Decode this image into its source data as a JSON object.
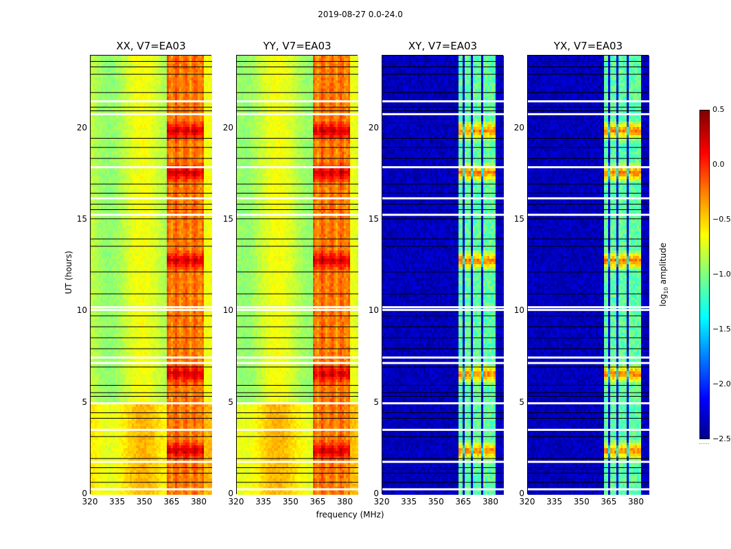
{
  "figure_title": "2019-08-27 0.0-24.0",
  "chart_data": {
    "type": "heatmap",
    "panels": [
      {
        "title": "XX, V7=EA03",
        "mode": "auto"
      },
      {
        "title": "YY, V7=EA03",
        "mode": "auto"
      },
      {
        "title": "XY, V7=EA03",
        "mode": "cross"
      },
      {
        "title": "YX, V7=EA03",
        "mode": "cross"
      }
    ],
    "xlabel": "frequency (MHz)",
    "ylabel": "UT (hours)",
    "xlim": [
      320,
      387
    ],
    "ylim": [
      0,
      24
    ],
    "x_ticks": [
      320,
      335,
      350,
      365,
      380
    ],
    "x_tick_labels": [
      "320",
      "335",
      "350",
      "365",
      "380"
    ],
    "y_ticks": [
      0,
      5,
      10,
      15,
      20
    ],
    "y_tick_labels": [
      "0",
      "5",
      "10",
      "15",
      "20"
    ],
    "colorbar": {
      "label": "log10 amplitude",
      "label_main": "log",
      "label_sub": "10",
      "label_rest": " amplitude",
      "vmin": -2.5,
      "vmax": 0.5,
      "ticks": [
        0.5,
        0.0,
        -0.5,
        -1.0,
        -1.5,
        -2.0,
        -2.5
      ],
      "tick_labels": [
        "0.5",
        "0.0",
        "−0.5",
        "−1.0",
        "−1.5",
        "−2.0",
        "−2.5"
      ],
      "colors": [
        "#00008f",
        "#0000ff",
        "#0080ff",
        "#00ffff",
        "#80ff80",
        "#ffff00",
        "#ff8000",
        "#ff0000",
        "#800000"
      ]
    },
    "bright_band_MHz": [
      362,
      383
    ],
    "strong_hours": [
      2.4,
      6.6,
      12.8,
      17.6,
      19.9
    ],
    "blank_rows_hours": [
      0.3,
      1.8,
      3.55,
      5.0,
      7.2,
      7.5,
      10.1,
      10.25,
      15.3,
      16.2,
      17.9,
      20.8,
      21.5
    ],
    "dark_rows_hours": [
      0.7,
      1.2,
      1.5,
      2.0,
      3.2,
      4.2,
      4.5,
      5.4,
      5.6,
      6.0,
      7.0,
      8.0,
      8.6,
      9.2,
      9.8,
      11.0,
      12.2,
      13.6,
      14.0,
      15.1,
      15.6,
      15.9,
      16.5,
      17.0,
      18.4,
      19.0,
      19.5,
      21.0,
      21.2,
      22.0,
      23.0,
      23.4,
      23.7
    ]
  }
}
